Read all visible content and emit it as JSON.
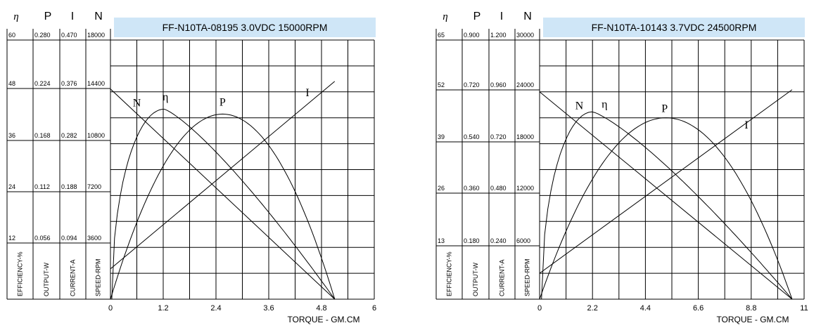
{
  "chart_data": [
    {
      "type": "line",
      "title": "FF-N10TA-08195     3.0VDC  15000RPM",
      "title_bg": "#cfe6f7",
      "xlabel": "TORQUE - GM.CM",
      "x_ticks": [
        "0",
        "1.2",
        "2.4",
        "3.6",
        "4.8",
        "6"
      ],
      "xlim": [
        0,
        6
      ],
      "column_headers": [
        "η",
        "P",
        "I",
        "N"
      ],
      "column_units": [
        "EFFICIENCY-%",
        "OUTPUT-W",
        "CURRENT-A",
        "SPEED-RPM"
      ],
      "y_scales": [
        {
          "name": "EFFICIENCY-%",
          "ticks": [
            "60",
            "48",
            "36",
            "24",
            "12"
          ],
          "ylim": [
            0,
            60
          ]
        },
        {
          "name": "OUTPUT-W",
          "ticks": [
            "0.280",
            "0.224",
            "0.168",
            "0.112",
            "0.056"
          ],
          "ylim": [
            0,
            0.28
          ]
        },
        {
          "name": "CURRENT-A",
          "ticks": [
            "0.470",
            "0.376",
            "0.282",
            "0.188",
            "0.094"
          ],
          "ylim": [
            0,
            0.47
          ]
        },
        {
          "name": "SPEED-RPM",
          "ticks": [
            "18000",
            "14400",
            "10800",
            "7200",
            "3600"
          ],
          "ylim": [
            0,
            18000
          ]
        }
      ],
      "grid": true,
      "series": [
        {
          "name": "N",
          "scale": 3,
          "kind": "line",
          "x": [
            0,
            5.1
          ],
          "y": [
            14600,
            0
          ],
          "label_x": 0.6,
          "label_y": 13400
        },
        {
          "name": "η",
          "scale": 0,
          "kind": "eff",
          "x0": 0.03,
          "x1": 5.1,
          "peak_x": 1.22,
          "peak_y": 44,
          "label_x": 1.25,
          "label_y": 46
        },
        {
          "name": "P",
          "scale": 1,
          "kind": "parab",
          "x0": 0,
          "x1": 5.1,
          "peak_x": 2.55,
          "peak_y": 0.2,
          "label_x": 2.55,
          "label_y": 0.209
        },
        {
          "name": "I",
          "scale": 2,
          "kind": "line",
          "x": [
            0,
            5.1
          ],
          "y": [
            0.055,
            0.395
          ],
          "label_x": 4.48,
          "label_y": 0.368
        }
      ]
    },
    {
      "type": "line",
      "title": "FF-N10TA-10143     3.7VDC  24500RPM",
      "title_bg": "#cfe6f7",
      "xlabel": "TORQUE - GM.CM",
      "x_ticks": [
        "0",
        "2.2",
        "4.4",
        "6.6",
        "8.8",
        "11"
      ],
      "xlim": [
        0,
        11
      ],
      "column_headers": [
        "η",
        "P",
        "I",
        "N"
      ],
      "column_units": [
        "EFFICIENCY-%",
        "OUTPUT-W",
        "CURRENT-A",
        "SPEED-RPM"
      ],
      "y_scales": [
        {
          "name": "EFFICIENCY-%",
          "ticks": [
            "65",
            "52",
            "39",
            "26",
            "13"
          ],
          "ylim": [
            0,
            65
          ]
        },
        {
          "name": "OUTPUT-W",
          "ticks": [
            "0.900",
            "0.720",
            "0.540",
            "0.360",
            "0.180"
          ],
          "ylim": [
            0,
            0.9
          ]
        },
        {
          "name": "CURRENT-A",
          "ticks": [
            "1.200",
            "0.960",
            "0.720",
            "0.480",
            "0.240"
          ],
          "ylim": [
            0,
            1.2
          ]
        },
        {
          "name": "SPEED-RPM",
          "ticks": [
            "30000",
            "24000",
            "18000",
            "12000",
            "6000"
          ],
          "ylim": [
            0,
            30000
          ]
        }
      ],
      "grid": true,
      "series": [
        {
          "name": "N",
          "scale": 3,
          "kind": "line",
          "x": [
            0,
            10.5
          ],
          "y": [
            24000,
            0
          ],
          "label_x": 1.65,
          "label_y": 22000
        },
        {
          "name": "η",
          "scale": 0,
          "kind": "eff",
          "x0": 0.08,
          "x1": 10.5,
          "peak_x": 2.2,
          "peak_y": 47,
          "label_x": 2.7,
          "label_y": 48
        },
        {
          "name": "P",
          "scale": 1,
          "kind": "parab",
          "x0": 0,
          "x1": 10.5,
          "peak_x": 5.25,
          "peak_y": 0.63,
          "label_x": 5.2,
          "label_y": 0.65
        },
        {
          "name": "I",
          "scale": 2,
          "kind": "line",
          "x": [
            0,
            10.5
          ],
          "y": [
            0.12,
            0.97
          ],
          "label_x": 8.6,
          "label_y": 0.79
        }
      ]
    }
  ]
}
